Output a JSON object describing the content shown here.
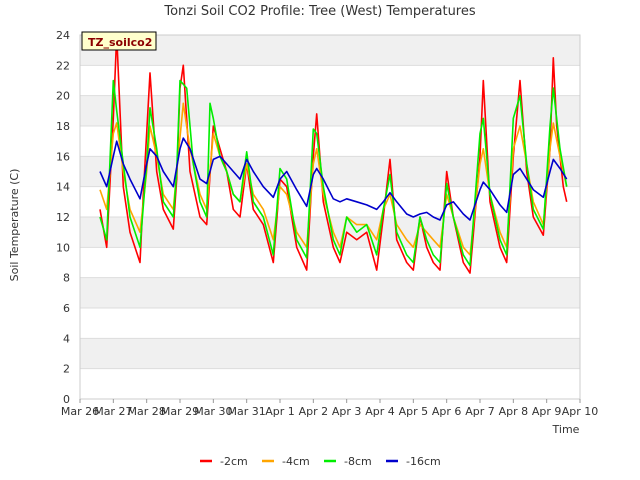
{
  "chart_data": {
    "type": "line",
    "title": "Tonzi Soil CO2 Profile: Tree (West) Temperatures",
    "xlabel": "Time",
    "ylabel": "Soil Temperature (C)",
    "badge": "TZ_soilco2",
    "ylim": [
      0,
      24
    ],
    "xlim": [
      0,
      15
    ],
    "y_ticks": [
      0,
      2,
      4,
      6,
      8,
      10,
      12,
      14,
      16,
      18,
      20,
      22,
      24
    ],
    "x_ticks": [
      {
        "v": 0,
        "label": "Mar 26"
      },
      {
        "v": 1,
        "label": "Mar 27"
      },
      {
        "v": 2,
        "label": "Mar 28"
      },
      {
        "v": 3,
        "label": "Mar 29"
      },
      {
        "v": 4,
        "label": "Mar 30"
      },
      {
        "v": 5,
        "label": "Mar 31"
      },
      {
        "v": 6,
        "label": "Apr 1"
      },
      {
        "v": 7,
        "label": "Apr 2"
      },
      {
        "v": 8,
        "label": "Apr 3"
      },
      {
        "v": 9,
        "label": "Apr 4"
      },
      {
        "v": 10,
        "label": "Apr 5"
      },
      {
        "v": 11,
        "label": "Apr 6"
      },
      {
        "v": 12,
        "label": "Apr 7"
      },
      {
        "v": 13,
        "label": "Apr 8"
      },
      {
        "v": 14,
        "label": "Apr 9"
      },
      {
        "v": 15,
        "label": "Apr 10"
      }
    ],
    "grid": true,
    "legend_position": "bottom",
    "series": [
      {
        "name": "-2cm",
        "color": "#ff0000",
        "points": [
          [
            0.6,
            12.5
          ],
          [
            0.8,
            10.0
          ],
          [
            1.0,
            18.5
          ],
          [
            1.1,
            24.0
          ],
          [
            1.3,
            14.0
          ],
          [
            1.5,
            11.0
          ],
          [
            1.8,
            9.0
          ],
          [
            1.9,
            13.5
          ],
          [
            2.1,
            21.5
          ],
          [
            2.3,
            15.0
          ],
          [
            2.5,
            12.5
          ],
          [
            2.8,
            11.2
          ],
          [
            2.9,
            14.5
          ],
          [
            3.0,
            20.5
          ],
          [
            3.1,
            22.0
          ],
          [
            3.3,
            15.0
          ],
          [
            3.6,
            12.0
          ],
          [
            3.8,
            11.5
          ],
          [
            4.0,
            18.0
          ],
          [
            4.2,
            16.5
          ],
          [
            4.4,
            15.0
          ],
          [
            4.6,
            12.5
          ],
          [
            4.8,
            12.0
          ],
          [
            5.0,
            15.5
          ],
          [
            5.2,
            12.5
          ],
          [
            5.5,
            11.5
          ],
          [
            5.8,
            9.0
          ],
          [
            6.0,
            14.5
          ],
          [
            6.2,
            14.0
          ],
          [
            6.5,
            10.0
          ],
          [
            6.8,
            8.5
          ],
          [
            7.0,
            16.0
          ],
          [
            7.1,
            18.8
          ],
          [
            7.3,
            13.0
          ],
          [
            7.6,
            10.0
          ],
          [
            7.8,
            9.0
          ],
          [
            8.0,
            11.0
          ],
          [
            8.3,
            10.5
          ],
          [
            8.6,
            11.0
          ],
          [
            8.9,
            8.5
          ],
          [
            9.1,
            12.0
          ],
          [
            9.3,
            15.8
          ],
          [
            9.5,
            10.5
          ],
          [
            9.8,
            9.0
          ],
          [
            10.0,
            8.5
          ],
          [
            10.2,
            12.0
          ],
          [
            10.4,
            10.0
          ],
          [
            10.6,
            9.0
          ],
          [
            10.8,
            8.5
          ],
          [
            11.0,
            15.0
          ],
          [
            11.2,
            12.0
          ],
          [
            11.5,
            9.0
          ],
          [
            11.7,
            8.3
          ],
          [
            12.0,
            16.0
          ],
          [
            12.1,
            21.0
          ],
          [
            12.3,
            13.0
          ],
          [
            12.6,
            10.0
          ],
          [
            12.8,
            9.0
          ],
          [
            13.0,
            16.0
          ],
          [
            13.2,
            21.0
          ],
          [
            13.4,
            15.0
          ],
          [
            13.6,
            12.0
          ],
          [
            13.9,
            10.8
          ],
          [
            14.1,
            16.5
          ],
          [
            14.2,
            22.5
          ],
          [
            14.3,
            18.0
          ],
          [
            14.5,
            14.0
          ],
          [
            14.6,
            13.0
          ]
        ]
      },
      {
        "name": "-4cm",
        "color": "#ffa500",
        "points": [
          [
            0.6,
            13.8
          ],
          [
            0.8,
            12.5
          ],
          [
            1.0,
            17.5
          ],
          [
            1.1,
            18.2
          ],
          [
            1.3,
            15.0
          ],
          [
            1.5,
            12.5
          ],
          [
            1.8,
            11.0
          ],
          [
            2.0,
            15.0
          ],
          [
            2.1,
            18.0
          ],
          [
            2.3,
            16.0
          ],
          [
            2.5,
            13.5
          ],
          [
            2.8,
            12.5
          ],
          [
            2.9,
            15.0
          ],
          [
            3.1,
            19.5
          ],
          [
            3.3,
            16.5
          ],
          [
            3.6,
            13.5
          ],
          [
            3.8,
            12.5
          ],
          [
            4.0,
            17.5
          ],
          [
            4.2,
            16.0
          ],
          [
            4.4,
            15.0
          ],
          [
            4.6,
            13.5
          ],
          [
            4.8,
            13.0
          ],
          [
            5.0,
            15.5
          ],
          [
            5.2,
            13.5
          ],
          [
            5.5,
            12.5
          ],
          [
            5.8,
            10.5
          ],
          [
            6.0,
            14.0
          ],
          [
            6.2,
            13.5
          ],
          [
            6.5,
            11.0
          ],
          [
            6.8,
            10.0
          ],
          [
            7.0,
            15.5
          ],
          [
            7.1,
            16.5
          ],
          [
            7.3,
            13.5
          ],
          [
            7.6,
            11.0
          ],
          [
            7.8,
            10.0
          ],
          [
            8.0,
            12.0
          ],
          [
            8.3,
            11.5
          ],
          [
            8.6,
            11.5
          ],
          [
            8.9,
            10.5
          ],
          [
            9.1,
            12.5
          ],
          [
            9.3,
            13.5
          ],
          [
            9.5,
            11.5
          ],
          [
            9.8,
            10.5
          ],
          [
            10.0,
            10.0
          ],
          [
            10.2,
            11.5
          ],
          [
            10.4,
            11.0
          ],
          [
            10.6,
            10.5
          ],
          [
            10.8,
            10.0
          ],
          [
            11.0,
            13.5
          ],
          [
            11.2,
            12.0
          ],
          [
            11.5,
            10.0
          ],
          [
            11.7,
            9.5
          ],
          [
            12.0,
            15.5
          ],
          [
            12.1,
            16.5
          ],
          [
            12.3,
            13.5
          ],
          [
            12.6,
            11.0
          ],
          [
            12.8,
            10.0
          ],
          [
            13.0,
            16.5
          ],
          [
            13.2,
            18.0
          ],
          [
            13.4,
            15.5
          ],
          [
            13.6,
            13.0
          ],
          [
            13.9,
            11.5
          ],
          [
            14.1,
            16.5
          ],
          [
            14.2,
            18.2
          ],
          [
            14.4,
            16.0
          ],
          [
            14.6,
            14.0
          ]
        ]
      },
      {
        "name": "-8cm",
        "color": "#00ee00",
        "points": [
          [
            0.6,
            12.0
          ],
          [
            0.8,
            10.5
          ],
          [
            1.0,
            21.0
          ],
          [
            1.1,
            19.0
          ],
          [
            1.3,
            15.5
          ],
          [
            1.5,
            12.0
          ],
          [
            1.8,
            10.0
          ],
          [
            2.0,
            15.5
          ],
          [
            2.1,
            19.2
          ],
          [
            2.3,
            16.5
          ],
          [
            2.5,
            13.0
          ],
          [
            2.8,
            12.0
          ],
          [
            2.9,
            15.0
          ],
          [
            3.0,
            21.0
          ],
          [
            3.2,
            20.5
          ],
          [
            3.4,
            15.5
          ],
          [
            3.6,
            13.0
          ],
          [
            3.8,
            12.0
          ],
          [
            3.9,
            19.5
          ],
          [
            4.0,
            18.5
          ],
          [
            4.2,
            16.0
          ],
          [
            4.4,
            15.0
          ],
          [
            4.6,
            13.5
          ],
          [
            4.8,
            13.0
          ],
          [
            5.0,
            16.3
          ],
          [
            5.2,
            13.0
          ],
          [
            5.5,
            12.0
          ],
          [
            5.8,
            9.5
          ],
          [
            6.0,
            15.2
          ],
          [
            6.2,
            14.5
          ],
          [
            6.5,
            10.5
          ],
          [
            6.8,
            9.3
          ],
          [
            7.0,
            17.8
          ],
          [
            7.1,
            17.5
          ],
          [
            7.3,
            14.0
          ],
          [
            7.6,
            10.5
          ],
          [
            7.8,
            9.5
          ],
          [
            8.0,
            12.0
          ],
          [
            8.3,
            11.0
          ],
          [
            8.6,
            11.5
          ],
          [
            8.9,
            9.5
          ],
          [
            9.1,
            12.5
          ],
          [
            9.3,
            14.8
          ],
          [
            9.5,
            11.0
          ],
          [
            9.8,
            9.5
          ],
          [
            10.0,
            9.0
          ],
          [
            10.2,
            12.0
          ],
          [
            10.4,
            10.5
          ],
          [
            10.6,
            9.5
          ],
          [
            10.8,
            9.0
          ],
          [
            11.0,
            14.2
          ],
          [
            11.2,
            12.0
          ],
          [
            11.5,
            9.5
          ],
          [
            11.7,
            8.8
          ],
          [
            12.0,
            17.5
          ],
          [
            12.1,
            18.5
          ],
          [
            12.3,
            13.5
          ],
          [
            12.6,
            10.5
          ],
          [
            12.8,
            9.5
          ],
          [
            13.0,
            18.5
          ],
          [
            13.2,
            20.0
          ],
          [
            13.4,
            15.5
          ],
          [
            13.6,
            12.5
          ],
          [
            13.9,
            11.2
          ],
          [
            14.1,
            18.0
          ],
          [
            14.2,
            20.5
          ],
          [
            14.4,
            16.5
          ],
          [
            14.6,
            14.0
          ]
        ]
      },
      {
        "name": "-16cm",
        "color": "#0000cc",
        "points": [
          [
            0.6,
            15.0
          ],
          [
            0.8,
            14.0
          ],
          [
            1.0,
            16.0
          ],
          [
            1.1,
            17.0
          ],
          [
            1.3,
            15.5
          ],
          [
            1.5,
            14.5
          ],
          [
            1.8,
            13.2
          ],
          [
            2.0,
            15.5
          ],
          [
            2.1,
            16.5
          ],
          [
            2.3,
            16.0
          ],
          [
            2.5,
            15.0
          ],
          [
            2.8,
            14.0
          ],
          [
            3.0,
            16.5
          ],
          [
            3.1,
            17.2
          ],
          [
            3.3,
            16.5
          ],
          [
            3.6,
            14.5
          ],
          [
            3.8,
            14.2
          ],
          [
            4.0,
            15.8
          ],
          [
            4.2,
            16.0
          ],
          [
            4.4,
            15.5
          ],
          [
            4.6,
            15.0
          ],
          [
            4.8,
            14.5
          ],
          [
            5.0,
            15.8
          ],
          [
            5.2,
            15.0
          ],
          [
            5.5,
            14.0
          ],
          [
            5.8,
            13.3
          ],
          [
            6.0,
            14.5
          ],
          [
            6.2,
            15.0
          ],
          [
            6.5,
            13.8
          ],
          [
            6.8,
            12.7
          ],
          [
            7.0,
            14.8
          ],
          [
            7.1,
            15.2
          ],
          [
            7.3,
            14.5
          ],
          [
            7.6,
            13.2
          ],
          [
            7.8,
            13.0
          ],
          [
            8.0,
            13.2
          ],
          [
            8.3,
            13.0
          ],
          [
            8.6,
            12.8
          ],
          [
            8.9,
            12.5
          ],
          [
            9.1,
            13.0
          ],
          [
            9.3,
            13.6
          ],
          [
            9.5,
            13.0
          ],
          [
            9.8,
            12.2
          ],
          [
            10.0,
            12.0
          ],
          [
            10.2,
            12.2
          ],
          [
            10.4,
            12.3
          ],
          [
            10.6,
            12.0
          ],
          [
            10.8,
            11.8
          ],
          [
            11.0,
            12.8
          ],
          [
            11.2,
            13.0
          ],
          [
            11.5,
            12.2
          ],
          [
            11.7,
            11.8
          ],
          [
            12.0,
            13.8
          ],
          [
            12.1,
            14.3
          ],
          [
            12.3,
            13.8
          ],
          [
            12.6,
            12.8
          ],
          [
            12.8,
            12.3
          ],
          [
            13.0,
            14.8
          ],
          [
            13.2,
            15.2
          ],
          [
            13.4,
            14.5
          ],
          [
            13.6,
            13.8
          ],
          [
            13.9,
            13.3
          ],
          [
            14.1,
            15.0
          ],
          [
            14.2,
            15.8
          ],
          [
            14.4,
            15.2
          ],
          [
            14.6,
            14.5
          ]
        ]
      }
    ]
  }
}
